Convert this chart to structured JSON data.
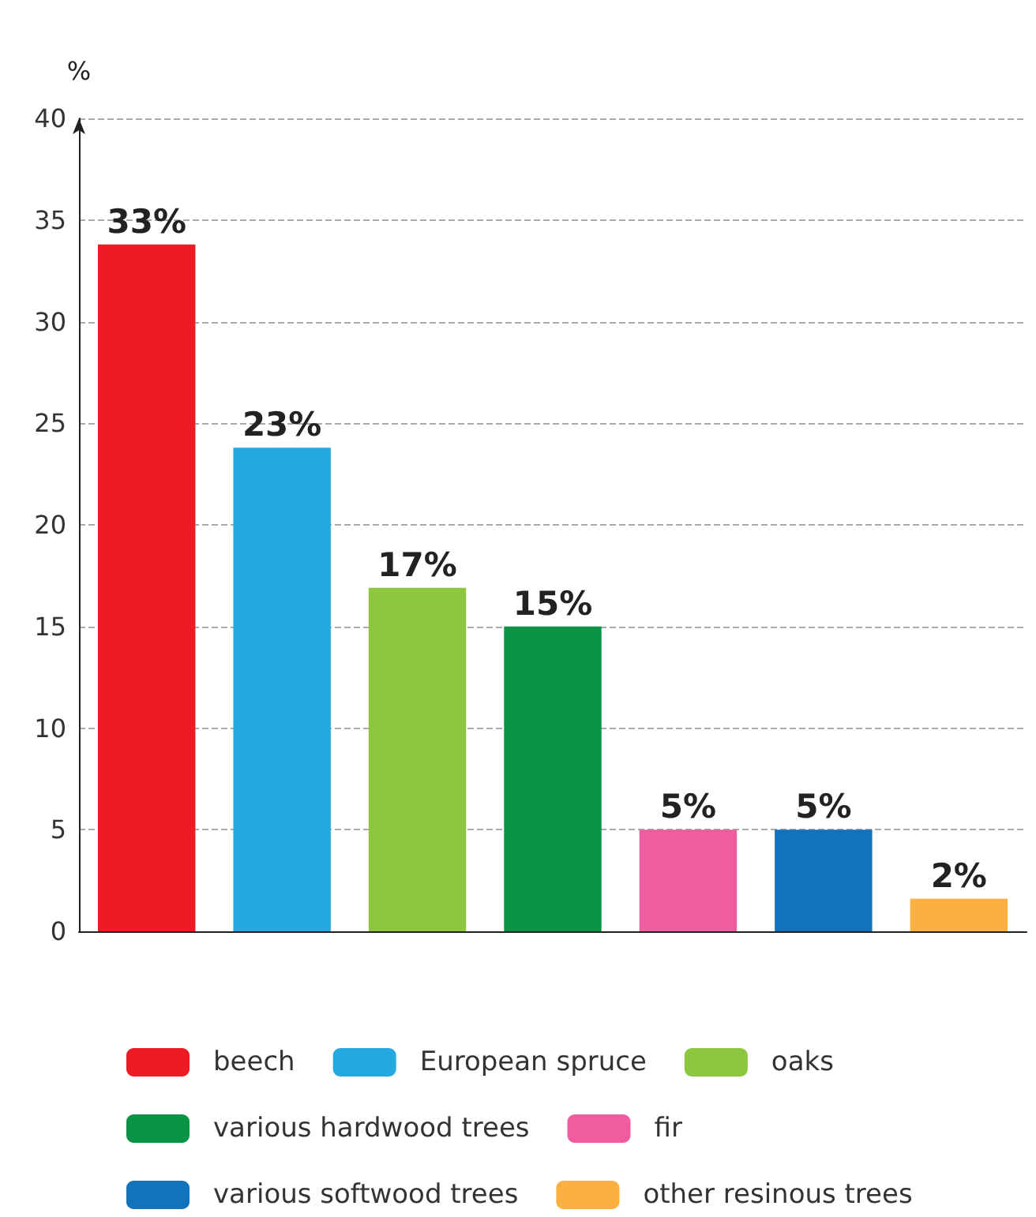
{
  "chart_data": {
    "type": "bar",
    "ylabel": "%",
    "categories": [
      null,
      null,
      null,
      null,
      null,
      null,
      null
    ],
    "series": [
      {
        "name": "beech",
        "color": "#ed1c24",
        "values": [
          33.8,
          null,
          null,
          null,
          null,
          null,
          null
        ]
      },
      {
        "name": "European spruce",
        "color": "#26a9e0",
        "values": [
          null,
          23.8,
          null,
          null,
          null,
          null,
          null
        ]
      },
      {
        "name": "oaks",
        "color": "#8dc63f",
        "values": [
          null,
          null,
          16.9,
          null,
          null,
          null,
          null
        ]
      },
      {
        "name": "various hardwood trees",
        "color": "#0b9444",
        "values": [
          null,
          null,
          null,
          15.0,
          null,
          null,
          null
        ]
      },
      {
        "name": "fir",
        "color": "#f05ca0",
        "values": [
          null,
          null,
          null,
          null,
          5.0,
          null,
          null
        ]
      },
      {
        "name": "various softwood trees",
        "color": "#1173bc",
        "values": [
          null,
          null,
          null,
          null,
          null,
          5.0,
          null
        ]
      },
      {
        "name": "other resinous trees",
        "color": "#fbb040",
        "values": [
          null,
          null,
          null,
          null,
          null,
          null,
          1.6
        ]
      }
    ],
    "value_labels": [
      "33%",
      "23%",
      "17%",
      "15%",
      "5%",
      "5%",
      "2%"
    ],
    "ylim": [
      0,
      40
    ],
    "yticks": [
      0,
      5,
      10,
      15,
      20,
      25,
      30,
      35,
      40
    ],
    "grid": "y",
    "legend": "bottom"
  }
}
